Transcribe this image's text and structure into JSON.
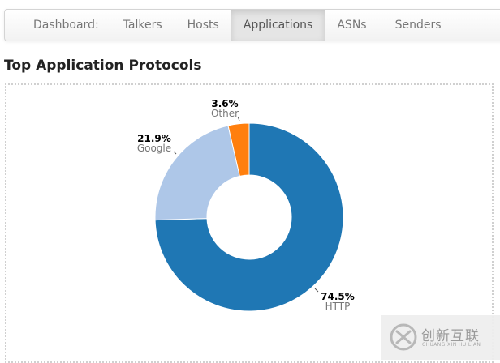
{
  "nav": {
    "items": [
      {
        "label": "Dashboard:",
        "active": false
      },
      {
        "label": "Talkers",
        "active": false
      },
      {
        "label": "Hosts",
        "active": false
      },
      {
        "label": "Applications",
        "active": true
      },
      {
        "label": "ASNs",
        "active": false
      },
      {
        "label": "Senders",
        "active": false
      }
    ]
  },
  "page": {
    "title": "Top Application Protocols"
  },
  "chart_data": {
    "type": "pie",
    "donut": true,
    "title": "",
    "slices": [
      {
        "label": "HTTP",
        "value": 74.5,
        "display": "74.5%",
        "color": "#1f77b4"
      },
      {
        "label": "Google",
        "value": 21.9,
        "display": "21.9%",
        "color": "#aec7e8"
      },
      {
        "label": "Other",
        "value": 3.6,
        "display": "3.6%",
        "color": "#ff7f0e"
      }
    ]
  },
  "watermark": {
    "text": "创新互联",
    "subtext": "CHUANG XIN HU LIAN"
  }
}
